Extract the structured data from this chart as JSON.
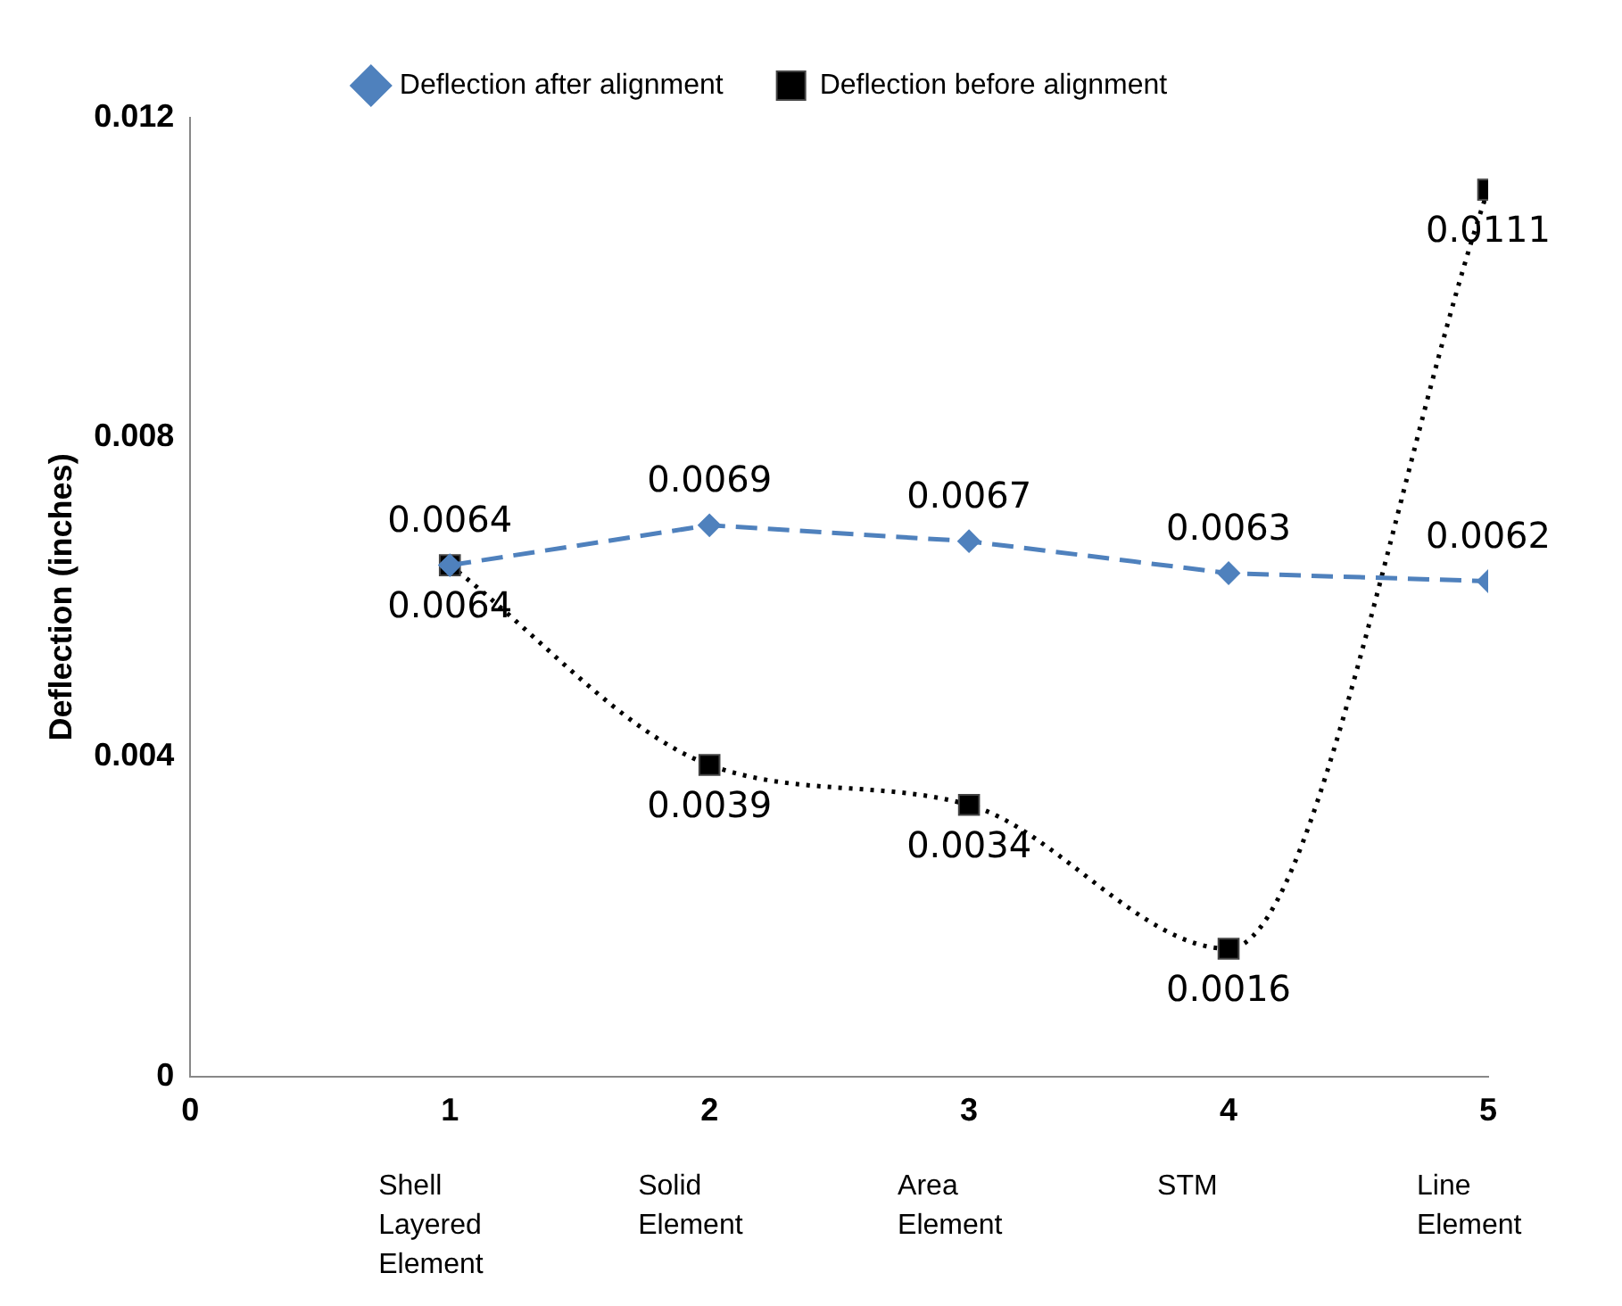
{
  "chart_data": {
    "type": "line",
    "ylabel": "Deflection (inches)",
    "xlim": [
      0,
      5
    ],
    "xticks": [
      0,
      1,
      2,
      3,
      4,
      5
    ],
    "ylim": [
      0,
      0.012
    ],
    "yticks": [
      0,
      0.004,
      0.008,
      0.012
    ],
    "grid": false,
    "legend": "top",
    "data_labels": true,
    "series": [
      {
        "name": "Deflection after alignment",
        "color": "#4f81bd",
        "x": [
          1,
          2,
          3,
          4,
          5
        ],
        "values": [
          0.0064,
          0.0069,
          0.0067,
          0.0063,
          0.0062
        ],
        "marker": "diamond",
        "line_style": "dashed"
      },
      {
        "name": "Deflection before alignment",
        "color": "#000000",
        "x": [
          1,
          2,
          3,
          4,
          5
        ],
        "values": [
          0.0064,
          0.0039,
          0.0034,
          0.0016,
          0.0111
        ],
        "marker": "square",
        "line_style": "dotted"
      }
    ],
    "annotations": [
      "Shell Layered Element",
      "Solid Element",
      "Area Element",
      "STM",
      "Line Element"
    ]
  }
}
